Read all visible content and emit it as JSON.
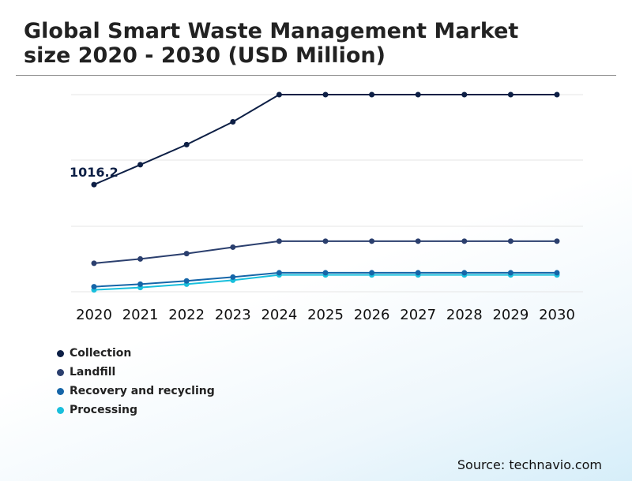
{
  "title_line1": "Global Smart Waste Management Market",
  "title_line2": "size 2020 - 2030 (USD Million)",
  "source": "Source: technavio.com",
  "colors": {
    "collection": "#0d1f45",
    "landfill": "#2b3f6e",
    "recovery": "#1565a8",
    "processing": "#19bfdc",
    "grid": "#e6e6e6"
  },
  "chart_data": {
    "type": "line",
    "title": "Global Smart Waste Management Market size 2020 - 2030 (USD Million)",
    "xlabel": "",
    "ylabel": "",
    "x": [
      "2020",
      "2021",
      "2022",
      "2023",
      "2024",
      "2025",
      "2026",
      "2027",
      "2028",
      "2029",
      "2030"
    ],
    "ylim": [
      0,
      3000
    ],
    "grid": true,
    "legend_position": "bottom-left",
    "series": [
      {
        "name": "Collection",
        "values": [
          1016.2,
          1205,
          1396,
          1612,
          1870,
          1870,
          1870,
          1870,
          1870,
          1870,
          1870
        ]
      },
      {
        "name": "Landfill",
        "values": [
          270,
          311,
          362,
          423,
          480,
          480,
          480,
          480,
          480,
          480,
          480
        ]
      },
      {
        "name": "Recovery and recycling",
        "values": [
          48,
          72,
          103,
          139,
          180,
          180,
          180,
          180,
          180,
          180,
          180
        ]
      },
      {
        "name": "Processing",
        "values": [
          18,
          40,
          72,
          109,
          160,
          160,
          160,
          160,
          160,
          160,
          160
        ]
      }
    ],
    "annotations": [
      {
        "series": "Collection",
        "x": "2020",
        "label": "1016.2"
      }
    ]
  }
}
